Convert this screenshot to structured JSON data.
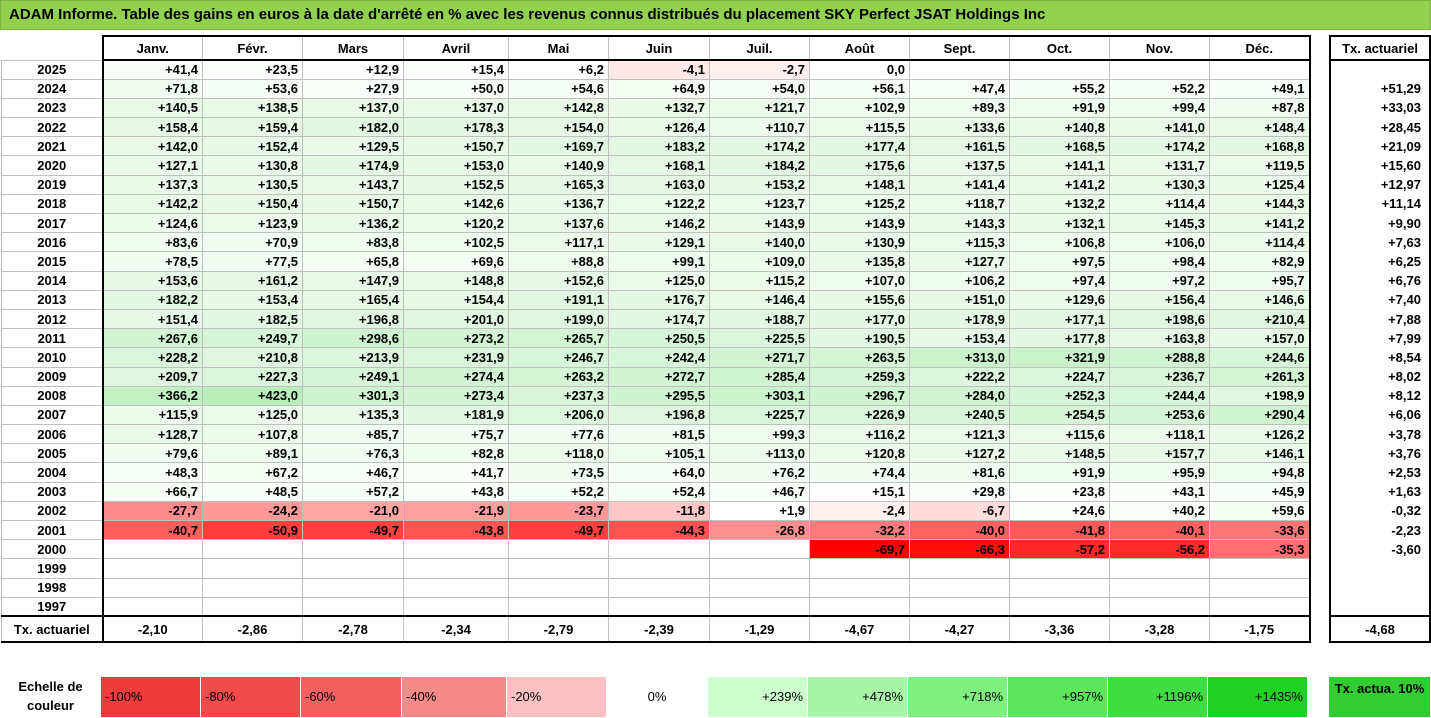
{
  "title": "ADAM Informe. Table des gains en euros à la date d'arrêté en % avec les revenus connus distribués du placement SKY Perfect JSAT Holdings Inc",
  "months": [
    "Janv.",
    "Févr.",
    "Mars",
    "Avril",
    "Mai",
    "Juin",
    "Juil.",
    "Août",
    "Sept.",
    "Oct.",
    "Nov.",
    "Déc."
  ],
  "actuarial_header": "Tx. actuariel",
  "rows": [
    {
      "year": "2025",
      "values": [
        "+41,4",
        "+23,5",
        "+12,9",
        "+15,4",
        "+6,2",
        "-4,1",
        "-2,7",
        "0,0",
        "",
        "",
        "",
        ""
      ],
      "actuarial": ""
    },
    {
      "year": "2024",
      "values": [
        "+71,8",
        "+53,6",
        "+27,9",
        "+50,0",
        "+54,6",
        "+64,9",
        "+54,0",
        "+56,1",
        "+47,4",
        "+55,2",
        "+52,2",
        "+49,1"
      ],
      "actuarial": "+51,29"
    },
    {
      "year": "2023",
      "values": [
        "+140,5",
        "+138,5",
        "+137,0",
        "+137,0",
        "+142,8",
        "+132,7",
        "+121,7",
        "+102,9",
        "+89,3",
        "+91,9",
        "+99,4",
        "+87,8"
      ],
      "actuarial": "+33,03"
    },
    {
      "year": "2022",
      "values": [
        "+158,4",
        "+159,4",
        "+182,0",
        "+178,3",
        "+154,0",
        "+126,4",
        "+110,7",
        "+115,5",
        "+133,6",
        "+140,8",
        "+141,0",
        "+148,4"
      ],
      "actuarial": "+28,45"
    },
    {
      "year": "2021",
      "values": [
        "+142,0",
        "+152,4",
        "+129,5",
        "+150,7",
        "+169,7",
        "+183,2",
        "+174,2",
        "+177,4",
        "+161,5",
        "+168,5",
        "+174,2",
        "+168,8"
      ],
      "actuarial": "+21,09"
    },
    {
      "year": "2020",
      "values": [
        "+127,1",
        "+130,8",
        "+174,9",
        "+153,0",
        "+140,9",
        "+168,1",
        "+184,2",
        "+175,6",
        "+137,5",
        "+141,1",
        "+131,7",
        "+119,5"
      ],
      "actuarial": "+15,60"
    },
    {
      "year": "2019",
      "values": [
        "+137,3",
        "+130,5",
        "+143,7",
        "+152,5",
        "+165,3",
        "+163,0",
        "+153,2",
        "+148,1",
        "+141,4",
        "+141,2",
        "+130,3",
        "+125,4"
      ],
      "actuarial": "+12,97"
    },
    {
      "year": "2018",
      "values": [
        "+142,2",
        "+150,4",
        "+150,7",
        "+142,6",
        "+136,7",
        "+122,2",
        "+123,7",
        "+125,2",
        "+118,7",
        "+132,2",
        "+114,4",
        "+144,3"
      ],
      "actuarial": "+11,14"
    },
    {
      "year": "2017",
      "values": [
        "+124,6",
        "+123,9",
        "+136,2",
        "+120,2",
        "+137,6",
        "+146,2",
        "+143,9",
        "+143,9",
        "+143,3",
        "+132,1",
        "+145,3",
        "+141,2"
      ],
      "actuarial": "+9,90"
    },
    {
      "year": "2016",
      "values": [
        "+83,6",
        "+70,9",
        "+83,8",
        "+102,5",
        "+117,1",
        "+129,1",
        "+140,0",
        "+130,9",
        "+115,3",
        "+106,8",
        "+106,0",
        "+114,4"
      ],
      "actuarial": "+7,63"
    },
    {
      "year": "2015",
      "values": [
        "+78,5",
        "+77,5",
        "+65,8",
        "+69,6",
        "+88,8",
        "+99,1",
        "+109,0",
        "+135,8",
        "+127,7",
        "+97,5",
        "+98,4",
        "+82,9"
      ],
      "actuarial": "+6,25"
    },
    {
      "year": "2014",
      "values": [
        "+153,6",
        "+161,2",
        "+147,9",
        "+148,8",
        "+152,6",
        "+125,0",
        "+115,2",
        "+107,0",
        "+106,2",
        "+97,4",
        "+97,2",
        "+95,7"
      ],
      "actuarial": "+6,76"
    },
    {
      "year": "2013",
      "values": [
        "+182,2",
        "+153,4",
        "+165,4",
        "+154,4",
        "+191,1",
        "+176,7",
        "+146,4",
        "+155,6",
        "+151,0",
        "+129,6",
        "+156,4",
        "+146,6"
      ],
      "actuarial": "+7,40"
    },
    {
      "year": "2012",
      "values": [
        "+151,4",
        "+182,5",
        "+196,8",
        "+201,0",
        "+199,0",
        "+174,7",
        "+188,7",
        "+177,0",
        "+178,9",
        "+177,1",
        "+198,6",
        "+210,4"
      ],
      "actuarial": "+7,88"
    },
    {
      "year": "2011",
      "values": [
        "+267,6",
        "+249,7",
        "+298,6",
        "+273,2",
        "+265,7",
        "+250,5",
        "+225,5",
        "+190,5",
        "+153,4",
        "+177,8",
        "+163,8",
        "+157,0"
      ],
      "actuarial": "+7,99"
    },
    {
      "year": "2010",
      "values": [
        "+228,2",
        "+210,8",
        "+213,9",
        "+231,9",
        "+246,7",
        "+242,4",
        "+271,7",
        "+263,5",
        "+313,0",
        "+321,9",
        "+288,8",
        "+244,6"
      ],
      "actuarial": "+8,54"
    },
    {
      "year": "2009",
      "values": [
        "+209,7",
        "+227,3",
        "+249,1",
        "+274,4",
        "+263,2",
        "+272,7",
        "+285,4",
        "+259,3",
        "+222,2",
        "+224,7",
        "+236,7",
        "+261,3"
      ],
      "actuarial": "+8,02"
    },
    {
      "year": "2008",
      "values": [
        "+366,2",
        "+423,0",
        "+301,3",
        "+273,4",
        "+237,3",
        "+295,5",
        "+303,1",
        "+296,7",
        "+284,0",
        "+252,3",
        "+244,4",
        "+198,9"
      ],
      "actuarial": "+8,12"
    },
    {
      "year": "2007",
      "values": [
        "+115,9",
        "+125,0",
        "+135,3",
        "+181,9",
        "+206,0",
        "+196,8",
        "+225,7",
        "+226,9",
        "+240,5",
        "+254,5",
        "+253,6",
        "+290,4"
      ],
      "actuarial": "+6,06"
    },
    {
      "year": "2006",
      "values": [
        "+128,7",
        "+107,8",
        "+85,7",
        "+75,7",
        "+77,6",
        "+81,5",
        "+99,3",
        "+116,2",
        "+121,3",
        "+115,6",
        "+118,1",
        "+126,2"
      ],
      "actuarial": "+3,78"
    },
    {
      "year": "2005",
      "values": [
        "+79,6",
        "+89,1",
        "+76,3",
        "+82,8",
        "+118,0",
        "+105,1",
        "+113,0",
        "+120,8",
        "+127,2",
        "+148,5",
        "+157,7",
        "+146,1"
      ],
      "actuarial": "+3,76"
    },
    {
      "year": "2004",
      "values": [
        "+48,3",
        "+67,2",
        "+46,7",
        "+41,7",
        "+73,5",
        "+64,0",
        "+76,2",
        "+74,4",
        "+81,6",
        "+91,9",
        "+95,9",
        "+94,8"
      ],
      "actuarial": "+2,53"
    },
    {
      "year": "2003",
      "values": [
        "+66,7",
        "+48,5",
        "+57,2",
        "+43,8",
        "+52,2",
        "+52,4",
        "+46,7",
        "+15,1",
        "+29,8",
        "+23,8",
        "+43,1",
        "+45,9"
      ],
      "actuarial": "+1,63"
    },
    {
      "year": "2002",
      "values": [
        "-27,7",
        "-24,2",
        "-21,0",
        "-21,9",
        "-23,7",
        "-11,8",
        "+1,9",
        "-2,4",
        "-6,7",
        "+24,6",
        "+40,2",
        "+59,6"
      ],
      "actuarial": "-0,32"
    },
    {
      "year": "2001",
      "values": [
        "-40,7",
        "-50,9",
        "-49,7",
        "-43,8",
        "-49,7",
        "-44,3",
        "-26,8",
        "-32,2",
        "-40,0",
        "-41,8",
        "-40,1",
        "-33,6"
      ],
      "actuarial": "-2,23"
    },
    {
      "year": "2000",
      "values": [
        "",
        "",
        "",
        "",
        "",
        "",
        "",
        "-69,7",
        "-66,3",
        "-57,2",
        "-56,2",
        "-35,3"
      ],
      "actuarial": "-3,60"
    },
    {
      "year": "1999",
      "values": [
        "",
        "",
        "",
        "",
        "",
        "",
        "",
        "",
        "",
        "",
        "",
        ""
      ],
      "actuarial": ""
    },
    {
      "year": "1998",
      "values": [
        "",
        "",
        "",
        "",
        "",
        "",
        "",
        "",
        "",
        "",
        "",
        ""
      ],
      "actuarial": ""
    },
    {
      "year": "1997",
      "values": [
        "",
        "",
        "",
        "",
        "",
        "",
        "",
        "",
        "",
        "",
        "",
        ""
      ],
      "actuarial": ""
    }
  ],
  "footer": {
    "label": "Tx. actuariel",
    "values": [
      "-2,10",
      "-2,86",
      "-2,78",
      "-2,34",
      "-2,79",
      "-2,39",
      "-1,29",
      "-4,67",
      "-4,27",
      "-3,36",
      "-3,28",
      "-1,75"
    ],
    "actuarial": "-4,68"
  },
  "scale": {
    "label": "Echelle de couleur",
    "items": [
      "-100%",
      "-80%",
      "-60%",
      "-40%",
      "-20%",
      "0%",
      "+239%",
      "+478%",
      "+718%",
      "+957%",
      "+1196%",
      "+1435%"
    ],
    "colors": [
      "#ee3b3b",
      "#f04a4a",
      "#f26060",
      "#f58a8a",
      "#f9c1c1",
      "#ffffff",
      "#ccffcc",
      "#a8f5a8",
      "#7df07d",
      "#5ce65c",
      "#40dd40",
      "#22d022"
    ],
    "actuarial_label": "Tx. actua. 10%",
    "actuarial_color": "#33cc33"
  },
  "cell_colors": {
    "negative_max": "#ff0000",
    "positive_max": "#33cc33",
    "neutral": "#ffffff"
  }
}
